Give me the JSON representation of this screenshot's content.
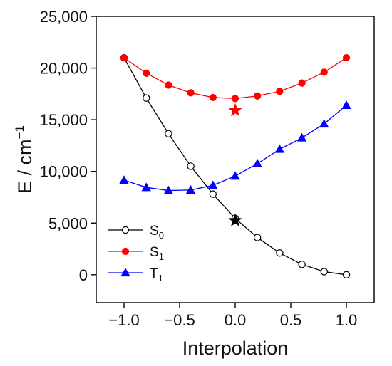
{
  "chart_data": {
    "type": "line",
    "xlabel": "Interpolation",
    "ylabel": "E / cm",
    "ylabel_sup": "−1",
    "xlim": [
      -1.25,
      1.25
    ],
    "ylim": [
      -2700,
      25000
    ],
    "xticks": [
      -1.0,
      -0.5,
      0.0,
      0.5,
      1.0
    ],
    "xtick_labels": [
      "−1.0",
      "−0.5",
      "0.0",
      "0.5",
      "1.0"
    ],
    "yticks": [
      0,
      5000,
      10000,
      15000,
      20000,
      25000
    ],
    "ytick_labels": [
      "0",
      "5,000",
      "10,000",
      "15,000",
      "20,000",
      "25,000"
    ],
    "grid": false,
    "legend_position": "bottom-left",
    "x": [
      -1.0,
      -0.8,
      -0.6,
      -0.4,
      -0.2,
      0.0,
      0.2,
      0.4,
      0.6,
      0.8,
      1.0
    ],
    "series": [
      {
        "name": "S",
        "name_sub": "0",
        "color": "#000000",
        "marker": "open-circle",
        "values": [
          21000,
          17100,
          13650,
          10500,
          7800,
          5450,
          3600,
          2100,
          1000,
          300,
          0
        ]
      },
      {
        "name": "S",
        "name_sub": "1",
        "color": "#ff0000",
        "marker": "filled-circle",
        "values": [
          21000,
          19500,
          18350,
          17600,
          17150,
          17050,
          17300,
          17750,
          18550,
          19600,
          21000
        ]
      },
      {
        "name": "T",
        "name_sub": "1",
        "color": "#0000ff",
        "marker": "filled-triangle",
        "values": [
          9150,
          8450,
          8150,
          8200,
          8650,
          9550,
          10750,
          12150,
          13250,
          14600,
          16400
        ]
      }
    ],
    "annotations": [
      {
        "marker": "star",
        "color": "#ff0000",
        "x": 0.0,
        "y": 15900
      },
      {
        "marker": "star",
        "color": "#000000",
        "x": 0.0,
        "y": 5250
      }
    ]
  }
}
